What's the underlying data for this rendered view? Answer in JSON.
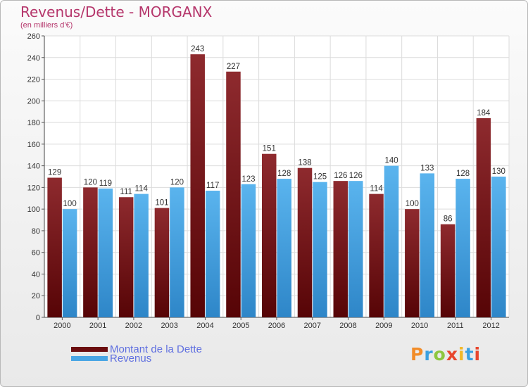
{
  "title": "Revenus/Dette - MORGANX",
  "subtitle": "(en milliers d'€)",
  "logo": "Proxiti",
  "colors": {
    "dette": "#7a1f22",
    "revenus": "#3f9fe0",
    "title": "#b5366b",
    "legend_text": "#5f6fe0"
  },
  "legend": [
    {
      "label": "Montant de la Dette",
      "color": "#6b0d0f"
    },
    {
      "label": "Revenus",
      "color": "#4aa6e4"
    }
  ],
  "chart_data": {
    "type": "bar",
    "title": "Revenus/Dette - MORGANX",
    "subtitle": "(en milliers d'€)",
    "categories": [
      "2000",
      "2001",
      "2002",
      "2003",
      "2004",
      "2005",
      "2006",
      "2007",
      "2008",
      "2009",
      "2010",
      "2011",
      "2012"
    ],
    "series": [
      {
        "name": "Montant de la Dette",
        "values": [
          129,
          120,
          111,
          101,
          243,
          227,
          151,
          138,
          126,
          114,
          100,
          86,
          184
        ]
      },
      {
        "name": "Revenus",
        "values": [
          100,
          119,
          114,
          120,
          117,
          123,
          128,
          125,
          126,
          140,
          133,
          128,
          130
        ]
      }
    ],
    "ylim": [
      0,
      260
    ],
    "yticks": [
      0,
      20,
      40,
      60,
      80,
      100,
      120,
      140,
      160,
      180,
      200,
      220,
      240,
      260
    ],
    "grid": true,
    "legend_position": "bottom-left",
    "data_labels": true
  }
}
